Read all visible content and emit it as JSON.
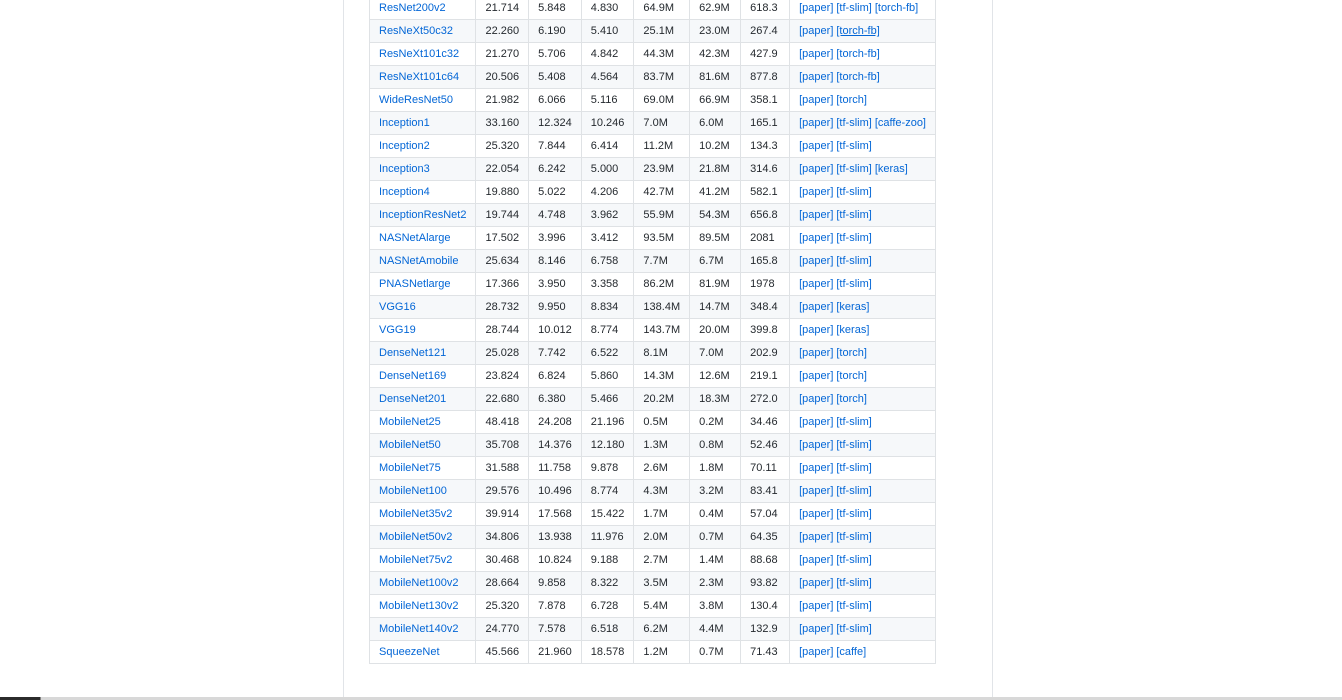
{
  "table": {
    "rows": [
      {
        "model": "ResNet200v2",
        "v1": "21.714",
        "v2": "5.848",
        "v3": "4.830",
        "v4": "64.9M",
        "v5": "62.9M",
        "v6": "618.3",
        "refs": [
          "[paper]",
          "[tf-slim]",
          "[torch-fb]"
        ]
      },
      {
        "model": "ResNeXt50c32",
        "v1": "22.260",
        "v2": "6.190",
        "v3": "5.410",
        "v4": "25.1M",
        "v5": "23.0M",
        "v6": "267.4",
        "refs": [
          "[paper]",
          "[torch-fb]"
        ]
      },
      {
        "model": "ResNeXt101c32",
        "v1": "21.270",
        "v2": "5.706",
        "v3": "4.842",
        "v4": "44.3M",
        "v5": "42.3M",
        "v6": "427.9",
        "refs": [
          "[paper]",
          "[torch-fb]"
        ]
      },
      {
        "model": "ResNeXt101c64",
        "v1": "20.506",
        "v2": "5.408",
        "v3": "4.564",
        "v4": "83.7M",
        "v5": "81.6M",
        "v6": "877.8",
        "refs": [
          "[paper]",
          "[torch-fb]"
        ]
      },
      {
        "model": "WideResNet50",
        "v1": "21.982",
        "v2": "6.066",
        "v3": "5.116",
        "v4": "69.0M",
        "v5": "66.9M",
        "v6": "358.1",
        "refs": [
          "[paper]",
          "[torch]"
        ]
      },
      {
        "model": "Inception1",
        "v1": "33.160",
        "v2": "12.324",
        "v3": "10.246",
        "v4": "7.0M",
        "v5": "6.0M",
        "v6": "165.1",
        "refs": [
          "[paper]",
          "[tf-slim]",
          "[caffe-zoo]"
        ]
      },
      {
        "model": "Inception2",
        "v1": "25.320",
        "v2": "7.844",
        "v3": "6.414",
        "v4": "11.2M",
        "v5": "10.2M",
        "v6": "134.3",
        "refs": [
          "[paper]",
          "[tf-slim]"
        ]
      },
      {
        "model": "Inception3",
        "v1": "22.054",
        "v2": "6.242",
        "v3": "5.000",
        "v4": "23.9M",
        "v5": "21.8M",
        "v6": "314.6",
        "refs": [
          "[paper]",
          "[tf-slim]",
          "[keras]"
        ]
      },
      {
        "model": "Inception4",
        "v1": "19.880",
        "v2": "5.022",
        "v3": "4.206",
        "v4": "42.7M",
        "v5": "41.2M",
        "v6": "582.1",
        "refs": [
          "[paper]",
          "[tf-slim]"
        ]
      },
      {
        "model": "InceptionResNet2",
        "v1": "19.744",
        "v2": "4.748",
        "v3": "3.962",
        "v4": "55.9M",
        "v5": "54.3M",
        "v6": "656.8",
        "refs": [
          "[paper]",
          "[tf-slim]"
        ]
      },
      {
        "model": "NASNetAlarge",
        "v1": "17.502",
        "v2": "3.996",
        "v3": "3.412",
        "v4": "93.5M",
        "v5": "89.5M",
        "v6": "2081",
        "refs": [
          "[paper]",
          "[tf-slim]"
        ]
      },
      {
        "model": "NASNetAmobile",
        "v1": "25.634",
        "v2": "8.146",
        "v3": "6.758",
        "v4": "7.7M",
        "v5": "6.7M",
        "v6": "165.8",
        "refs": [
          "[paper]",
          "[tf-slim]"
        ]
      },
      {
        "model": "PNASNetlarge",
        "v1": "17.366",
        "v2": "3.950",
        "v3": "3.358",
        "v4": "86.2M",
        "v5": "81.9M",
        "v6": "1978",
        "refs": [
          "[paper]",
          "[tf-slim]"
        ]
      },
      {
        "model": "VGG16",
        "v1": "28.732",
        "v2": "9.950",
        "v3": "8.834",
        "v4": "138.4M",
        "v5": "14.7M",
        "v6": "348.4",
        "refs": [
          "[paper]",
          "[keras]"
        ]
      },
      {
        "model": "VGG19",
        "v1": "28.744",
        "v2": "10.012",
        "v3": "8.774",
        "v4": "143.7M",
        "v5": "20.0M",
        "v6": "399.8",
        "refs": [
          "[paper]",
          "[keras]"
        ]
      },
      {
        "model": "DenseNet121",
        "v1": "25.028",
        "v2": "7.742",
        "v3": "6.522",
        "v4": "8.1M",
        "v5": "7.0M",
        "v6": "202.9",
        "refs": [
          "[paper]",
          "[torch]"
        ]
      },
      {
        "model": "DenseNet169",
        "v1": "23.824",
        "v2": "6.824",
        "v3": "5.860",
        "v4": "14.3M",
        "v5": "12.6M",
        "v6": "219.1",
        "refs": [
          "[paper]",
          "[torch]"
        ]
      },
      {
        "model": "DenseNet201",
        "v1": "22.680",
        "v2": "6.380",
        "v3": "5.466",
        "v4": "20.2M",
        "v5": "18.3M",
        "v6": "272.0",
        "refs": [
          "[paper]",
          "[torch]"
        ]
      },
      {
        "model": "MobileNet25",
        "v1": "48.418",
        "v2": "24.208",
        "v3": "21.196",
        "v4": "0.5M",
        "v5": "0.2M",
        "v6": "34.46",
        "refs": [
          "[paper]",
          "[tf-slim]"
        ]
      },
      {
        "model": "MobileNet50",
        "v1": "35.708",
        "v2": "14.376",
        "v3": "12.180",
        "v4": "1.3M",
        "v5": "0.8M",
        "v6": "52.46",
        "refs": [
          "[paper]",
          "[tf-slim]"
        ]
      },
      {
        "model": "MobileNet75",
        "v1": "31.588",
        "v2": "11.758",
        "v3": "9.878",
        "v4": "2.6M",
        "v5": "1.8M",
        "v6": "70.11",
        "refs": [
          "[paper]",
          "[tf-slim]"
        ]
      },
      {
        "model": "MobileNet100",
        "v1": "29.576",
        "v2": "10.496",
        "v3": "8.774",
        "v4": "4.3M",
        "v5": "3.2M",
        "v6": "83.41",
        "refs": [
          "[paper]",
          "[tf-slim]"
        ]
      },
      {
        "model": "MobileNet35v2",
        "v1": "39.914",
        "v2": "17.568",
        "v3": "15.422",
        "v4": "1.7M",
        "v5": "0.4M",
        "v6": "57.04",
        "refs": [
          "[paper]",
          "[tf-slim]"
        ]
      },
      {
        "model": "MobileNet50v2",
        "v1": "34.806",
        "v2": "13.938",
        "v3": "11.976",
        "v4": "2.0M",
        "v5": "0.7M",
        "v6": "64.35",
        "refs": [
          "[paper]",
          "[tf-slim]"
        ]
      },
      {
        "model": "MobileNet75v2",
        "v1": "30.468",
        "v2": "10.824",
        "v3": "9.188",
        "v4": "2.7M",
        "v5": "1.4M",
        "v6": "88.68",
        "refs": [
          "[paper]",
          "[tf-slim]"
        ]
      },
      {
        "model": "MobileNet100v2",
        "v1": "28.664",
        "v2": "9.858",
        "v3": "8.322",
        "v4": "3.5M",
        "v5": "2.3M",
        "v6": "93.82",
        "refs": [
          "[paper]",
          "[tf-slim]"
        ]
      },
      {
        "model": "MobileNet130v2",
        "v1": "25.320",
        "v2": "7.878",
        "v3": "6.728",
        "v4": "5.4M",
        "v5": "3.8M",
        "v6": "130.4",
        "refs": [
          "[paper]",
          "[tf-slim]"
        ]
      },
      {
        "model": "MobileNet140v2",
        "v1": "24.770",
        "v2": "7.578",
        "v3": "6.518",
        "v4": "6.2M",
        "v5": "4.4M",
        "v6": "132.9",
        "refs": [
          "[paper]",
          "[tf-slim]"
        ]
      },
      {
        "model": "SqueezeNet",
        "v1": "45.566",
        "v2": "21.960",
        "v3": "18.578",
        "v4": "1.2M",
        "v5": "0.7M",
        "v6": "71.43",
        "refs": [
          "[paper]",
          "[caffe]"
        ]
      }
    ]
  },
  "colors": {
    "link": "#0366d6",
    "text": "#24292e",
    "border": "#dfe2e5",
    "stripe": "#f6f8fa"
  }
}
